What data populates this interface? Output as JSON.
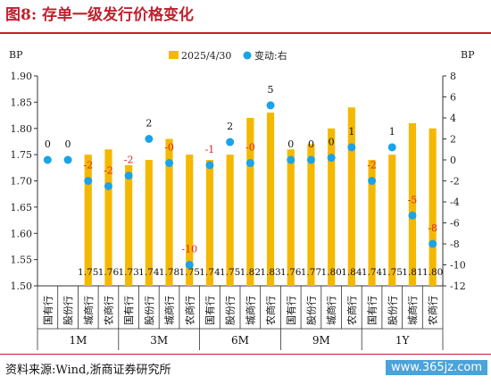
{
  "header": {
    "title": "图8:   存单一级发行价格变化"
  },
  "footer": {
    "source": "资料来源:Wind,浙商证券研究所",
    "watermark": "www.365jz.com"
  },
  "colors": {
    "bar": "#f5b800",
    "dot": "#1aa3e8",
    "accent": "#c0202e",
    "neg": "#e02020"
  },
  "chart_data": {
    "type": "bar",
    "legend_position": "top",
    "series": [
      {
        "name": "2025/4/30",
        "kind": "bar",
        "axis": "left",
        "values": [
          1.5,
          1.5,
          1.75,
          1.76,
          1.73,
          1.74,
          1.78,
          1.75,
          1.74,
          1.75,
          1.82,
          1.83,
          1.76,
          1.77,
          1.8,
          1.84,
          1.74,
          1.75,
          1.81,
          1.8
        ]
      },
      {
        "name": "变动:右",
        "kind": "scatter",
        "axis": "right",
        "values": [
          0,
          0,
          -2,
          -2.5,
          -1.5,
          2,
          -0.3,
          -10,
          -0.5,
          1.7,
          -0.3,
          5.2,
          0,
          0,
          0.2,
          1.2,
          -2,
          1.2,
          -5.3,
          -8
        ]
      }
    ],
    "value_labels": [
      "",
      "",
      "1.75",
      "1.76",
      "1.73",
      "1.74",
      "1.78",
      "1.75",
      "1.74",
      "1.75",
      "1.82",
      "1.83",
      "1.76",
      "1.77",
      "1.80",
      "1.84",
      "1.74",
      "1.75",
      "1.81",
      "1.80"
    ],
    "change_labels": [
      "0",
      "0",
      "-2",
      "-2",
      "-2",
      "2",
      "-0",
      "-10",
      "-1",
      "2",
      "-0",
      "5",
      "0",
      "0",
      "0",
      "1",
      "-2",
      "1",
      "-5",
      "-8"
    ],
    "categories": [
      "国有行",
      "股份行",
      "城商行",
      "农商行",
      "国有行",
      "股份行",
      "城商行",
      "农商行",
      "国有行",
      "股份行",
      "城商行",
      "农商行",
      "国有行",
      "股份行",
      "城商行",
      "农商行",
      "国有行",
      "股份行",
      "城商行",
      "农商行"
    ],
    "groups": [
      "1M",
      "3M",
      "6M",
      "9M",
      "1Y"
    ],
    "ylabel_left": "BP",
    "ylabel_right": "BP",
    "ylim_left": [
      1.5,
      1.9
    ],
    "ylim_right": [
      -12,
      8
    ],
    "yticks_left": [
      "1.50",
      "1.55",
      "1.60",
      "1.65",
      "1.70",
      "1.75",
      "1.80",
      "1.85",
      "1.90"
    ],
    "yticks_right": [
      "-12",
      "-10",
      "-8",
      "-6",
      "-4",
      "-2",
      "0",
      "2",
      "4",
      "6",
      "8"
    ]
  }
}
